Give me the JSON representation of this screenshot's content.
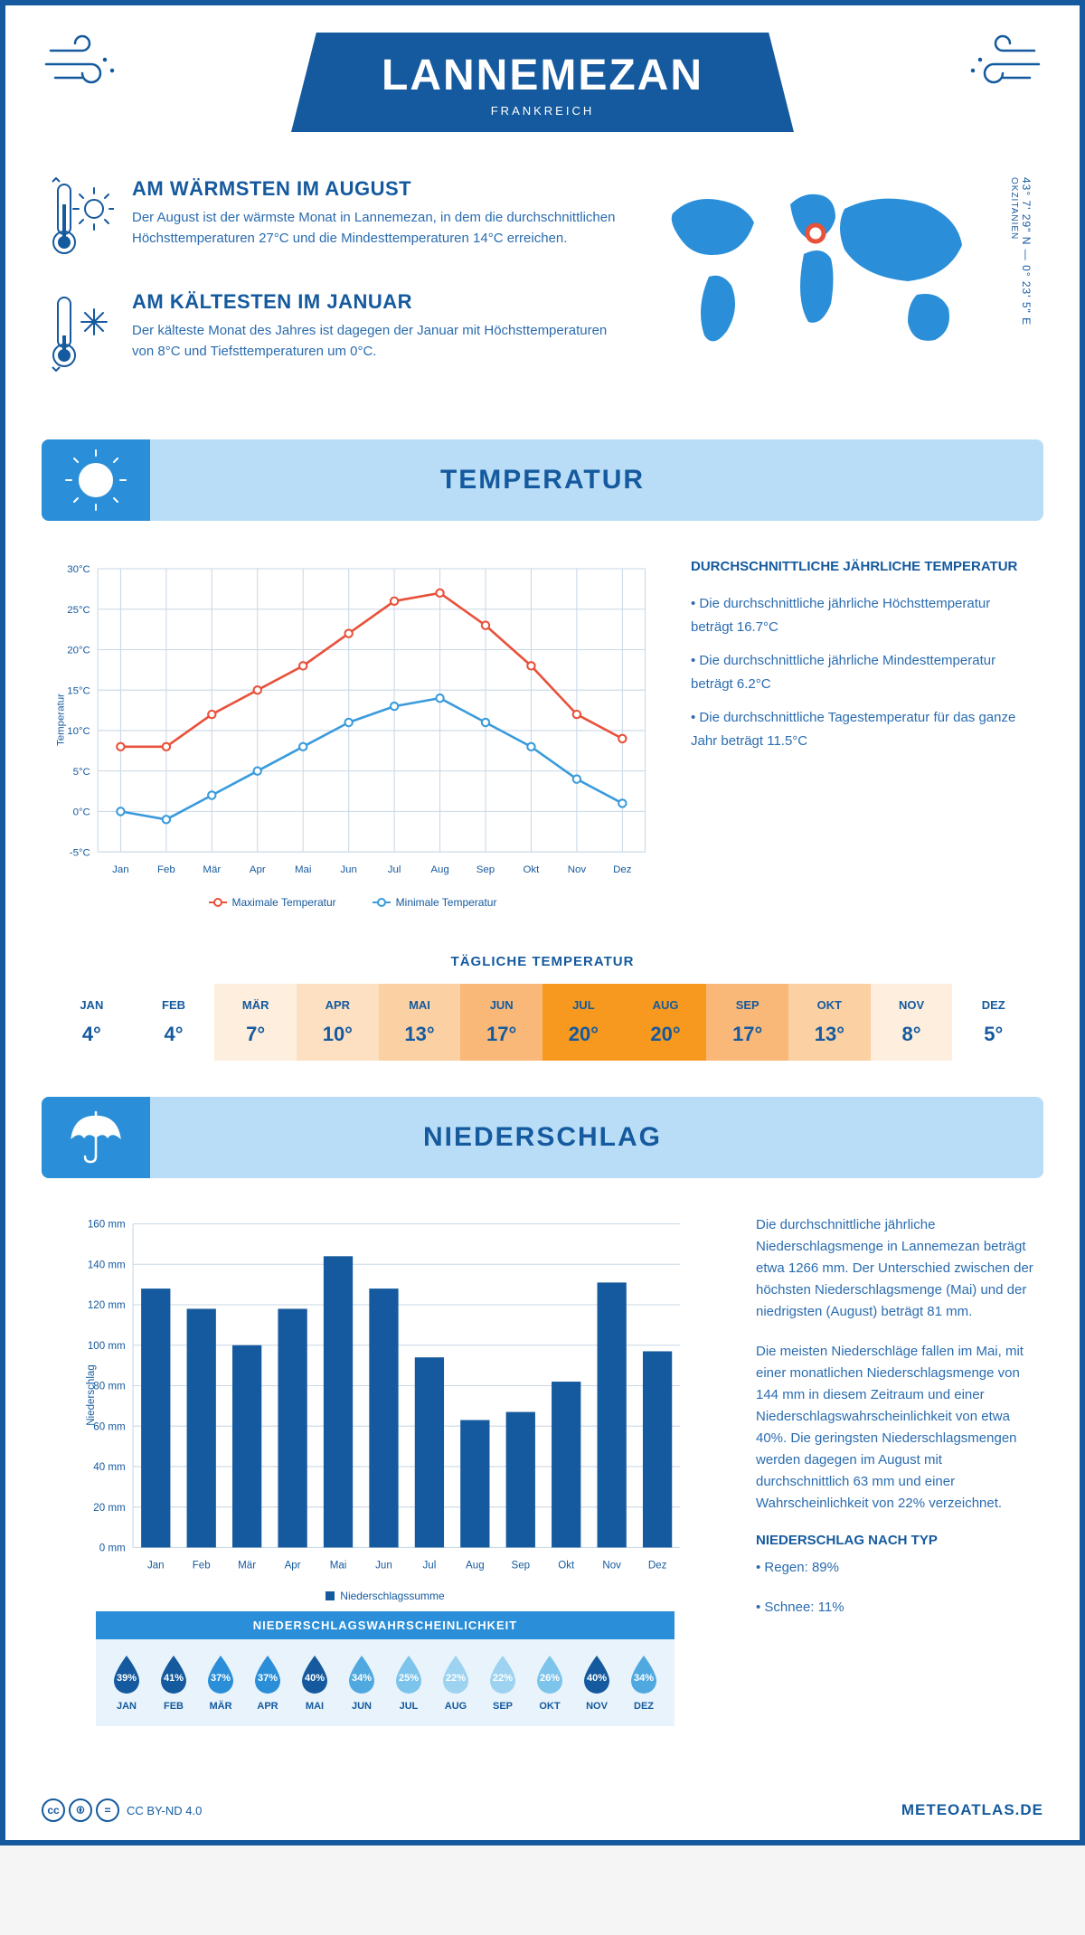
{
  "header": {
    "city": "LANNEMEZAN",
    "country": "FRANKREICH"
  },
  "coords": {
    "lat": "43° 7' 29\" N",
    "lon": "0° 23' 5\" E",
    "region": "OKZITANIEN"
  },
  "facts": {
    "warm": {
      "title": "AM WÄRMSTEN IM AUGUST",
      "text": "Der August ist der wärmste Monat in Lannemezan, in dem die durchschnittlichen Höchsttemperaturen 27°C und die Mindesttemperaturen 14°C erreichen."
    },
    "cold": {
      "title": "AM KÄLTESTEN IM JANUAR",
      "text": "Der kälteste Monat des Jahres ist dagegen der Januar mit Höchsttemperaturen von 8°C und Tiefsttemperaturen um 0°C."
    }
  },
  "tempSection": {
    "title": "TEMPERATUR",
    "chart": {
      "months": [
        "Jan",
        "Feb",
        "Mär",
        "Apr",
        "Mai",
        "Jun",
        "Jul",
        "Aug",
        "Sep",
        "Okt",
        "Nov",
        "Dez"
      ],
      "max": [
        8,
        8,
        12,
        15,
        18,
        22,
        26,
        27,
        23,
        18,
        12,
        9
      ],
      "min": [
        0,
        -1,
        2,
        5,
        8,
        11,
        13,
        14,
        11,
        8,
        4,
        1
      ],
      "maxColor": "#e8513a",
      "minColor": "#3a9bdc",
      "yMin": -5,
      "yMax": 30,
      "yStep": 5,
      "gridColor": "#c9d8e6",
      "yLabel": "Temperatur",
      "legendMax": "Maximale Temperatur",
      "legendMin": "Minimale Temperatur"
    },
    "info": {
      "title": "DURCHSCHNITTLICHE JÄHRLICHE TEMPERATUR",
      "b1": "• Die durchschnittliche jährliche Höchsttemperatur beträgt 16.7°C",
      "b2": "• Die durchschnittliche jährliche Mindesttemperatur beträgt 6.2°C",
      "b3": "• Die durchschnittliche Tagestemperatur für das ganze Jahr beträgt 11.5°C"
    },
    "daily": {
      "title": "TÄGLICHE TEMPERATUR",
      "months": [
        "JAN",
        "FEB",
        "MÄR",
        "APR",
        "MAI",
        "JUN",
        "JUL",
        "AUG",
        "SEP",
        "OKT",
        "NOV",
        "DEZ"
      ],
      "values": [
        "4°",
        "4°",
        "7°",
        "10°",
        "13°",
        "17°",
        "20°",
        "20°",
        "17°",
        "13°",
        "8°",
        "5°"
      ],
      "colors": [
        "#ffffff",
        "#ffffff",
        "#fdeedd",
        "#fce0c1",
        "#fbd0a2",
        "#f9b878",
        "#f7991e",
        "#f7991e",
        "#f9b878",
        "#fbd0a2",
        "#fdeedd",
        "#ffffff"
      ]
    }
  },
  "precipSection": {
    "title": "NIEDERSCHLAG",
    "chart": {
      "months": [
        "Jan",
        "Feb",
        "Mär",
        "Apr",
        "Mai",
        "Jun",
        "Jul",
        "Aug",
        "Sep",
        "Okt",
        "Nov",
        "Dez"
      ],
      "values": [
        128,
        118,
        100,
        118,
        144,
        128,
        94,
        63,
        67,
        82,
        131,
        97
      ],
      "barColor": "#155a9e",
      "yMax": 160,
      "yStep": 20,
      "gridColor": "#c9d8e6",
      "yLabel": "Niederschlag",
      "legend": "Niederschlagssumme"
    },
    "text1": "Die durchschnittliche jährliche Niederschlagsmenge in Lannemezan beträgt etwa 1266 mm. Der Unterschied zwischen der höchsten Niederschlagsmenge (Mai) und der niedrigsten (August) beträgt 81 mm.",
    "text2": "Die meisten Niederschläge fallen im Mai, mit einer monatlichen Niederschlagsmenge von 144 mm in diesem Zeitraum und einer Niederschlagswahrscheinlichkeit von etwa 40%. Die geringsten Niederschlagsmengen werden dagegen im August mit durchschnittlich 63 mm und einer Wahrscheinlichkeit von 22% verzeichnet.",
    "byType": {
      "title": "NIEDERSCHLAG NACH TYP",
      "l1": "• Regen: 89%",
      "l2": "• Schnee: 11%"
    },
    "prob": {
      "title": "NIEDERSCHLAGSWAHRSCHEINLICHKEIT",
      "months": [
        "JAN",
        "FEB",
        "MÄR",
        "APR",
        "MAI",
        "JUN",
        "JUL",
        "AUG",
        "SEP",
        "OKT",
        "NOV",
        "DEZ"
      ],
      "values": [
        "39%",
        "41%",
        "37%",
        "37%",
        "40%",
        "34%",
        "25%",
        "22%",
        "22%",
        "26%",
        "40%",
        "34%"
      ],
      "colors": [
        "#155a9e",
        "#155a9e",
        "#2a8fd8",
        "#2a8fd8",
        "#155a9e",
        "#4fa8e0",
        "#7cc4ec",
        "#9dd3f0",
        "#9dd3f0",
        "#7cc4ec",
        "#155a9e",
        "#4fa8e0"
      ]
    }
  },
  "footer": {
    "license": "CC BY-ND 4.0",
    "site": "METEOATLAS.DE"
  },
  "palette": {
    "primary": "#155a9e",
    "lightBlue": "#b9ddf6",
    "midBlue": "#2a8fd8"
  }
}
